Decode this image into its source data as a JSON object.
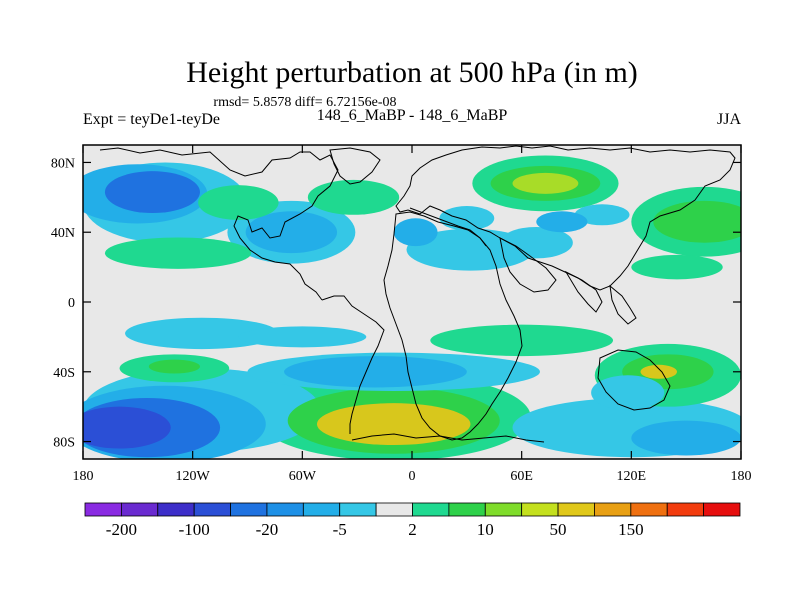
{
  "chart_data": {
    "type": "heatmap",
    "title": "Height perturbation at 500 hPa (in m)",
    "subtitle": "rmsd= 5.8578 diff= 6.72156e-08",
    "left_label": "Expt = teyDe1-teyDe",
    "center_label": "148_6_MaBP - 148_6_MaBP",
    "right_label": "JJA",
    "x_axis": {
      "range": [
        -180,
        180
      ],
      "ticks": [
        -180,
        -120,
        -60,
        0,
        60,
        120,
        180
      ],
      "tick_labels": [
        "180",
        "120W",
        "60W",
        "0",
        "60E",
        "120E",
        "180"
      ]
    },
    "y_axis": {
      "range": [
        -90,
        90
      ],
      "ticks": [
        80,
        40,
        0,
        -40,
        -80
      ],
      "tick_labels": [
        "80N",
        "40N",
        "0",
        "40S",
        "80S"
      ]
    },
    "colorbar": {
      "colors": [
        "#8a2be2",
        "#6a2ad0",
        "#3d2ec9",
        "#2b4fd6",
        "#1f72e0",
        "#1e90e6",
        "#23aee8",
        "#35c7e6",
        "#e8e8e8",
        "#1fd990",
        "#2ed14a",
        "#7fdc2a",
        "#c4e01e",
        "#e0c81a",
        "#e8a014",
        "#ef7010",
        "#f23c0e",
        "#e60e0e"
      ],
      "labels": [
        "-200",
        "-100",
        "-20",
        "-5",
        "2",
        "10",
        "50",
        "150"
      ]
    },
    "regions": [
      {
        "lon": -142,
        "lat": 63,
        "rx": 26,
        "ry": 12,
        "value": -20
      },
      {
        "lon": -150,
        "lat": 62,
        "rx": 38,
        "ry": 17,
        "value": -5
      },
      {
        "lon": -135,
        "lat": 57,
        "rx": 45,
        "ry": 23,
        "value": -2
      },
      {
        "lon": -95,
        "lat": 57,
        "rx": 22,
        "ry": 10,
        "value": 5
      },
      {
        "lon": -32,
        "lat": 60,
        "rx": 25,
        "ry": 10,
        "value": 5
      },
      {
        "lon": -66,
        "lat": 40,
        "rx": 25,
        "ry": 12,
        "value": -5
      },
      {
        "lon": -66,
        "lat": 40,
        "rx": 35,
        "ry": 18,
        "value": -2
      },
      {
        "lon": -128,
        "lat": 28,
        "rx": 40,
        "ry": 9,
        "value": 5
      },
      {
        "lon": 2,
        "lat": 40,
        "rx": 12,
        "ry": 8,
        "value": -5
      },
      {
        "lon": 32,
        "lat": 30,
        "rx": 35,
        "ry": 12,
        "value": -2
      },
      {
        "lon": 68,
        "lat": 34,
        "rx": 20,
        "ry": 9,
        "value": -2
      },
      {
        "lon": 30,
        "lat": 48,
        "rx": 15,
        "ry": 7,
        "value": -2
      },
      {
        "lon": 82,
        "lat": 46,
        "rx": 14,
        "ry": 6,
        "value": -5
      },
      {
        "lon": 104,
        "lat": 50,
        "rx": 15,
        "ry": 6,
        "value": -2
      },
      {
        "lon": 73,
        "lat": 68,
        "rx": 18,
        "ry": 6,
        "value": 50
      },
      {
        "lon": 73,
        "lat": 68,
        "rx": 30,
        "ry": 10,
        "value": 10
      },
      {
        "lon": 73,
        "lat": 68,
        "rx": 40,
        "ry": 16,
        "value": 5
      },
      {
        "lon": 160,
        "lat": 46,
        "rx": 28,
        "ry": 12,
        "value": 10
      },
      {
        "lon": 160,
        "lat": 46,
        "rx": 40,
        "ry": 20,
        "value": 5
      },
      {
        "lon": 145,
        "lat": 20,
        "rx": 25,
        "ry": 7,
        "value": 5
      },
      {
        "lon": -160,
        "lat": -72,
        "rx": 28,
        "ry": 12,
        "value": -50
      },
      {
        "lon": -145,
        "lat": -72,
        "rx": 40,
        "ry": 17,
        "value": -20
      },
      {
        "lon": -135,
        "lat": -70,
        "rx": 55,
        "ry": 22,
        "value": -5
      },
      {
        "lon": -115,
        "lat": -62,
        "rx": 65,
        "ry": 24,
        "value": -2
      },
      {
        "lon": -130,
        "lat": -37,
        "rx": 14,
        "ry": 4,
        "value": 10
      },
      {
        "lon": -130,
        "lat": -38,
        "rx": 30,
        "ry": 8,
        "value": 5
      },
      {
        "lon": -115,
        "lat": -18,
        "rx": 42,
        "ry": 9,
        "value": -2
      },
      {
        "lon": -60,
        "lat": -20,
        "rx": 35,
        "ry": 6,
        "value": -2
      },
      {
        "lon": -20,
        "lat": -40,
        "rx": 50,
        "ry": 9,
        "value": -5
      },
      {
        "lon": -10,
        "lat": -40,
        "rx": 80,
        "ry": 11,
        "value": -2
      },
      {
        "lon": -10,
        "lat": -70,
        "rx": 42,
        "ry": 12,
        "value": 20
      },
      {
        "lon": -10,
        "lat": -68,
        "rx": 58,
        "ry": 19,
        "value": 10
      },
      {
        "lon": -10,
        "lat": -66,
        "rx": 75,
        "ry": 25,
        "value": 5
      },
      {
        "lon": 60,
        "lat": -22,
        "rx": 50,
        "ry": 9,
        "value": 5
      },
      {
        "lon": 135,
        "lat": -40,
        "rx": 10,
        "ry": 4,
        "value": 20
      },
      {
        "lon": 140,
        "lat": -40,
        "rx": 25,
        "ry": 10,
        "value": 10
      },
      {
        "lon": 140,
        "lat": -42,
        "rx": 40,
        "ry": 18,
        "value": 5
      },
      {
        "lon": 150,
        "lat": -78,
        "rx": 30,
        "ry": 10,
        "value": -5
      },
      {
        "lon": 120,
        "lat": -72,
        "rx": 65,
        "ry": 17,
        "value": -2
      },
      {
        "lon": 118,
        "lat": -52,
        "rx": 20,
        "ry": 10,
        "value": -2
      }
    ]
  }
}
